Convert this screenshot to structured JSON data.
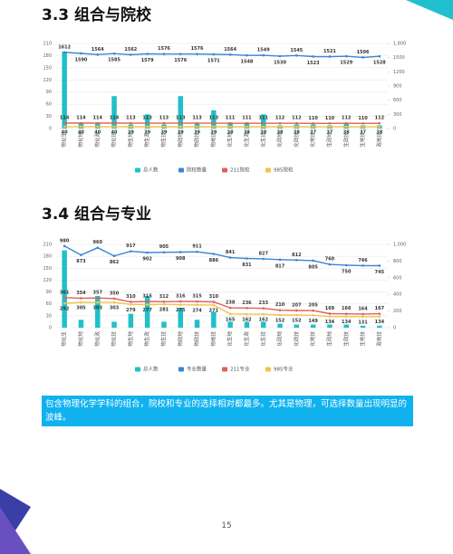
{
  "headings": [
    "3.3 组合与院校",
    "3.4 组合与专业"
  ],
  "chart_data": [
    {
      "type": "bar-line",
      "categories": [
        "物化生",
        "物化地",
        "物化政",
        "物化技",
        "物生地",
        "物生政",
        "物生技",
        "物政地",
        "物政技",
        "物地技",
        "化生地",
        "化生政",
        "化生技",
        "化政地",
        "化政技",
        "化地技",
        "生政地",
        "生政技",
        "生地技",
        "政地技"
      ],
      "series": [
        {
          "name": "总人数",
          "kind": "bar",
          "color": "#1fc0c8",
          "values": [
            190,
            12,
            12,
            80,
            10,
            35,
            10,
            80,
            12,
            45,
            15,
            15,
            35,
            8,
            10,
            10,
            8,
            12,
            8,
            8
          ]
        },
        {
          "name": "院校数量",
          "kind": "line",
          "axis": "y2",
          "color": "#3a86d6",
          "values": [
            1612,
            1590,
            1564,
            1585,
            1562,
            1579,
            1576,
            1576,
            1576,
            1571,
            1564,
            1548,
            1549,
            1530,
            1545,
            1523,
            1521,
            1529,
            1506,
            1528
          ]
        },
        {
          "name": "211院校",
          "kind": "line",
          "axis": "y2",
          "color": "#e0605a",
          "values": [
            114,
            114,
            114,
            114,
            113,
            113,
            113,
            113,
            113,
            113,
            111,
            111,
            111,
            112,
            112,
            110,
            110,
            112,
            110,
            112
          ]
        },
        {
          "name": "985院校",
          "kind": "line",
          "axis": "y2",
          "color": "#f0c44c",
          "values": [
            40,
            40,
            40,
            40,
            39,
            39,
            39,
            39,
            39,
            39,
            38,
            38,
            38,
            38,
            38,
            37,
            37,
            38,
            37,
            38
          ]
        }
      ],
      "ylim": [
        0,
        210
      ],
      "yticks": [
        0,
        30,
        60,
        90,
        120,
        150,
        180,
        210
      ],
      "y2lim": [
        0,
        1800
      ],
      "y2ticks": [
        0,
        300,
        600,
        900,
        1200,
        1500,
        {
          "value": 1800,
          "label": "1,800"
        }
      ]
    },
    {
      "type": "bar-line",
      "categories": [
        "物化生",
        "物化地",
        "物化政",
        "物化技",
        "物生地",
        "物生政",
        "物生技",
        "物政地",
        "物政技",
        "物地技",
        "化生地",
        "化生政",
        "化生技",
        "化政地",
        "化政技",
        "化地技",
        "生政地",
        "生政技",
        "生地技",
        "政地技"
      ],
      "series": [
        {
          "name": "总人数",
          "kind": "bar",
          "color": "#1fc0c8",
          "values": [
            195,
            20,
            80,
            15,
            35,
            80,
            15,
            50,
            20,
            40,
            15,
            15,
            15,
            10,
            8,
            8,
            8,
            8,
            5,
            5
          ]
        },
        {
          "name": "专业数量",
          "kind": "line",
          "axis": "y2",
          "color": "#3a86d6",
          "values": [
            980,
            873,
            960,
            862,
            917,
            902,
            905,
            908,
            911,
            886,
            841,
            831,
            827,
            817,
            812,
            805,
            760,
            750,
            746,
            745
          ]
        },
        {
          "name": "211专业",
          "kind": "line",
          "axis": "y2",
          "color": "#e0605a",
          "values": [
            361,
            354,
            357,
            350,
            310,
            315,
            312,
            316,
            315,
            310,
            238,
            236,
            233,
            210,
            207,
            205,
            169,
            166,
            164,
            167
          ]
        },
        {
          "name": "985专业",
          "kind": "line",
          "axis": "y2",
          "color": "#f0c44c",
          "values": [
            292,
            305,
            303,
            303,
            279,
            277,
            281,
            275,
            274,
            271,
            165,
            162,
            162,
            152,
            152,
            149,
            134,
            134,
            131,
            134
          ]
        }
      ],
      "ylim": [
        0,
        210
      ],
      "yticks": [
        0,
        30,
        60,
        90,
        120,
        150,
        180,
        210
      ],
      "y2lim": [
        0,
        1000
      ],
      "y2ticks": [
        0,
        200,
        400,
        600,
        800,
        {
          "value": 1000,
          "label": "1,000"
        }
      ]
    }
  ],
  "note": "包含物理化学学科的组合，院校和专业的选择相对都最多。尤其是物理，可选择数量出现明显的波峰。",
  "page_number": "15"
}
